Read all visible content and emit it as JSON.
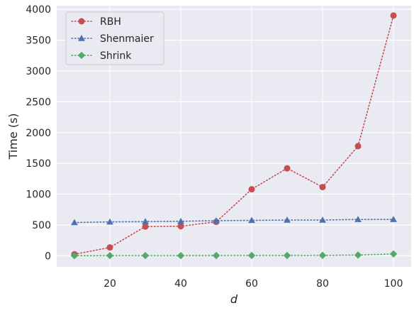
{
  "chart_data": {
    "type": "line",
    "title": "",
    "xlabel": "d",
    "ylabel": "Time (s)",
    "xlim": [
      5,
      105
    ],
    "ylim": [
      -180,
      4060
    ],
    "xticks": [
      20,
      40,
      60,
      80,
      100
    ],
    "yticks": [
      0,
      500,
      1000,
      1500,
      2000,
      2500,
      3000,
      3500,
      4000
    ],
    "grid": true,
    "legend_position": "upper-left",
    "x": [
      10,
      20,
      30,
      40,
      50,
      60,
      70,
      80,
      90,
      100
    ],
    "series": [
      {
        "name": "RBH",
        "marker": "circle",
        "color": "#c44e52",
        "values": [
          25,
          135,
          475,
          480,
          550,
          1080,
          1420,
          1115,
          1780,
          3900
        ]
      },
      {
        "name": "Shenmaier",
        "marker": "triangle",
        "color": "#4c72b0",
        "values": [
          540,
          550,
          555,
          560,
          570,
          575,
          580,
          580,
          590,
          590
        ]
      },
      {
        "name": "Shrink",
        "marker": "diamond",
        "color": "#55a868",
        "values": [
          2,
          3,
          3,
          3,
          4,
          5,
          5,
          6,
          12,
          30
        ]
      }
    ]
  }
}
